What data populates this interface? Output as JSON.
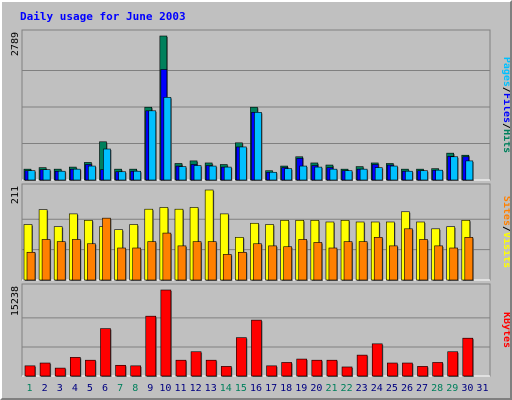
{
  "title": "Daily usage for June 2003",
  "colors": {
    "hits": "#00805c",
    "files": "#0000ff",
    "pages": "#00c0ff",
    "visits": "#ffff00",
    "sites": "#ff8000",
    "kbytes": "#ff0000",
    "title": "#0000ff",
    "weekend_label": "#00805c",
    "weekday_label": "#000080"
  },
  "chart_data": [
    {
      "type": "bar",
      "ylabel_max": "2789",
      "legend": [
        "Pages",
        "Files",
        "Hits"
      ],
      "categories": [
        "1",
        "2",
        "3",
        "4",
        "5",
        "6",
        "7",
        "8",
        "9",
        "10",
        "11",
        "12",
        "13",
        "14",
        "15",
        "16",
        "17",
        "18",
        "19",
        "20",
        "21",
        "22",
        "23",
        "24",
        "25",
        "26",
        "27",
        "28",
        "29",
        "30",
        "31"
      ],
      "series": [
        {
          "name": "Hits",
          "values": [
            210,
            240,
            210,
            250,
            340,
            740,
            210,
            210,
            1410,
            2789,
            320,
            370,
            330,
            300,
            720,
            1410,
            180,
            270,
            450,
            330,
            290,
            210,
            260,
            330,
            320,
            210,
            210,
            220,
            520,
            480,
            0
          ]
        },
        {
          "name": "Files",
          "values": [
            180,
            200,
            170,
            210,
            300,
            200,
            160,
            170,
            1340,
            2140,
            270,
            300,
            280,
            250,
            640,
            1310,
            150,
            240,
            420,
            280,
            240,
            180,
            210,
            300,
            290,
            170,
            180,
            190,
            460,
            450,
            0
          ]
        },
        {
          "name": "Pages",
          "values": [
            180,
            200,
            170,
            210,
            270,
            600,
            160,
            170,
            1340,
            1600,
            260,
            280,
            270,
            250,
            640,
            1310,
            150,
            220,
            270,
            250,
            210,
            180,
            210,
            240,
            270,
            170,
            180,
            190,
            450,
            370,
            0
          ]
        }
      ],
      "ylim": [
        0,
        2789
      ]
    },
    {
      "type": "bar",
      "ylabel_max": "211",
      "legend": [
        "Sites",
        "Visits"
      ],
      "categories": [
        "1",
        "2",
        "3",
        "4",
        "5",
        "6",
        "7",
        "8",
        "9",
        "10",
        "11",
        "12",
        "13",
        "14",
        "15",
        "16",
        "17",
        "18",
        "19",
        "20",
        "21",
        "22",
        "23",
        "24",
        "25",
        "26",
        "27",
        "28",
        "29",
        "30",
        "31"
      ],
      "series": [
        {
          "name": "Visits",
          "values": [
            130,
            165,
            125,
            155,
            140,
            125,
            118,
            130,
            166,
            170,
            166,
            170,
            211,
            155,
            100,
            133,
            130,
            140,
            140,
            140,
            136,
            140,
            136,
            136,
            136,
            160,
            136,
            120,
            125,
            140,
            0
          ]
        },
        {
          "name": "Sites",
          "values": [
            65,
            95,
            90,
            95,
            85,
            145,
            75,
            75,
            90,
            110,
            80,
            90,
            90,
            60,
            65,
            85,
            80,
            78,
            95,
            88,
            75,
            90,
            90,
            100,
            80,
            120,
            95,
            80,
            75,
            100,
            0
          ]
        }
      ],
      "ylim": [
        0,
        211
      ]
    },
    {
      "type": "bar",
      "ylabel_max": "15238",
      "legend": [
        "KBytes"
      ],
      "categories": [
        "1",
        "2",
        "3",
        "4",
        "5",
        "6",
        "7",
        "8",
        "9",
        "10",
        "11",
        "12",
        "13",
        "14",
        "15",
        "16",
        "17",
        "18",
        "19",
        "20",
        "21",
        "22",
        "23",
        "24",
        "25",
        "26",
        "27",
        "28",
        "29",
        "30",
        "31"
      ],
      "series": [
        {
          "name": "KBytes",
          "values": [
            1800,
            2300,
            1400,
            3300,
            2800,
            8400,
            1900,
            1800,
            10600,
            15238,
            2800,
            4300,
            2800,
            1700,
            6800,
            9900,
            1800,
            2400,
            3000,
            2800,
            2800,
            1600,
            3700,
            5700,
            2300,
            2300,
            1700,
            2400,
            4300,
            6700,
            0
          ]
        }
      ],
      "ylim": [
        0,
        15238
      ]
    }
  ],
  "day_labels": [
    "1",
    "2",
    "3",
    "4",
    "5",
    "6",
    "7",
    "8",
    "9",
    "10",
    "11",
    "12",
    "13",
    "14",
    "15",
    "16",
    "17",
    "18",
    "19",
    "20",
    "21",
    "22",
    "23",
    "24",
    "25",
    "26",
    "27",
    "28",
    "29",
    "30",
    "31"
  ],
  "weekend_days": [
    "1",
    "7",
    "8",
    "14",
    "15",
    "21",
    "22",
    "28",
    "29"
  ],
  "legend_sep": "/"
}
